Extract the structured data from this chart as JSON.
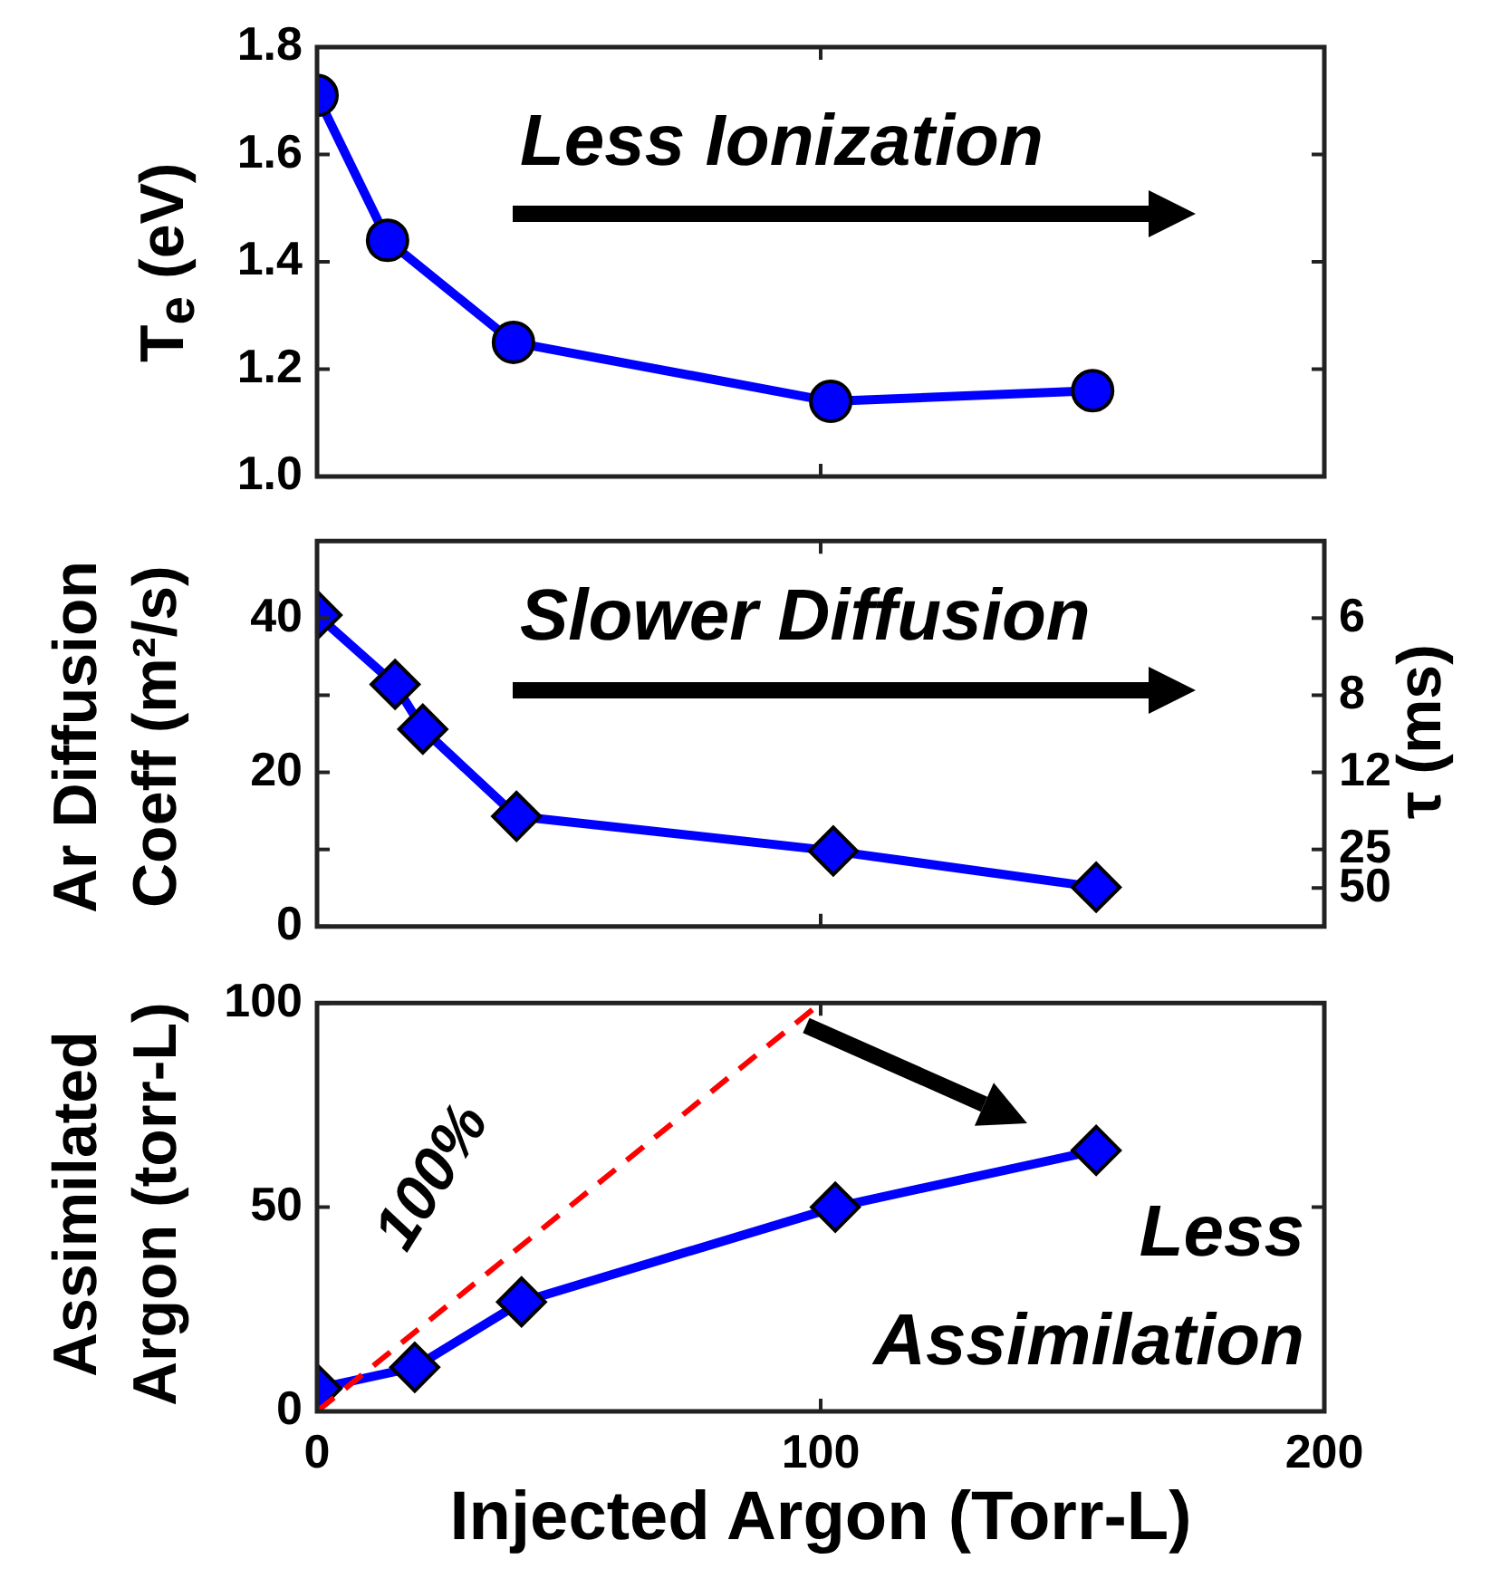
{
  "chart_data": [
    {
      "type": "line",
      "ylabel": "T$_{e}$ (eV)",
      "x": [
        0,
        14,
        39,
        102,
        154
      ],
      "xlim": [
        0,
        200
      ],
      "xticks": [
        0,
        100,
        200
      ],
      "ylim": [
        1.0,
        1.8
      ],
      "yticks": [
        {
          "value": 1.0,
          "label": "1.0"
        },
        1.2,
        1.4,
        1.6,
        1.8
      ],
      "tick_labels": "y",
      "marker": "circle",
      "legend": false,
      "annotations": [
        "Less Ionization"
      ],
      "series": [
        {
          "color": "#0000ff",
          "values": [
            1.71,
            1.44,
            1.25,
            1.14,
            1.16
          ]
        }
      ]
    },
    {
      "type": "line",
      "ylabel": "Ar Diffusion Coeff (m²/s)",
      "y2label": "τ (ms)",
      "x": [
        0,
        15.5,
        21,
        39.6,
        102.5,
        154.7
      ],
      "xlim": [
        0,
        200
      ],
      "xticks": [
        0,
        100,
        200
      ],
      "ylim": [
        0,
        50
      ],
      "yticks": [
        0,
        {
          "value": 10,
          "label": null
        },
        20,
        {
          "value": 30,
          "label": null
        },
        40
      ],
      "y2_categories": [
        null,
        null,
        "6",
        null,
        "8",
        null,
        "12",
        null,
        "25",
        "50",
        null
      ],
      "tick_labels": "y",
      "marker": "diamond",
      "legend": false,
      "annotations": [
        "Slower Diffusion"
      ],
      "series": [
        {
          "color": "#0000ff",
          "values": [
            40.4,
            31.4,
            25.6,
            14.3,
            9.8,
            5.1
          ]
        }
      ]
    },
    {
      "type": "line",
      "ylabel": "Assimilated Argon (torr-L)",
      "xlabel": "Injected Argon (Torr-L)",
      "x": [
        0,
        19.4,
        40.6,
        102.9,
        154.7
      ],
      "xlim": [
        0,
        200
      ],
      "xticks": [
        0,
        100,
        200
      ],
      "ylim": [
        0,
        100
      ],
      "yticks": [
        0,
        50,
        100
      ],
      "marker": "diamond",
      "legend": false,
      "annotations": [
        "Less Assimilation"
      ],
      "series": [
        {
          "color": "#0000ff",
          "values": [
            5.6,
            10.8,
            26.8,
            50,
            63.9
          ]
        },
        {
          "name": "100%",
          "color": "#ff0000",
          "x": [
            0,
            100
          ],
          "values": [
            0,
            100
          ],
          "line_style": "dashed",
          "marker": "none"
        }
      ]
    }
  ]
}
